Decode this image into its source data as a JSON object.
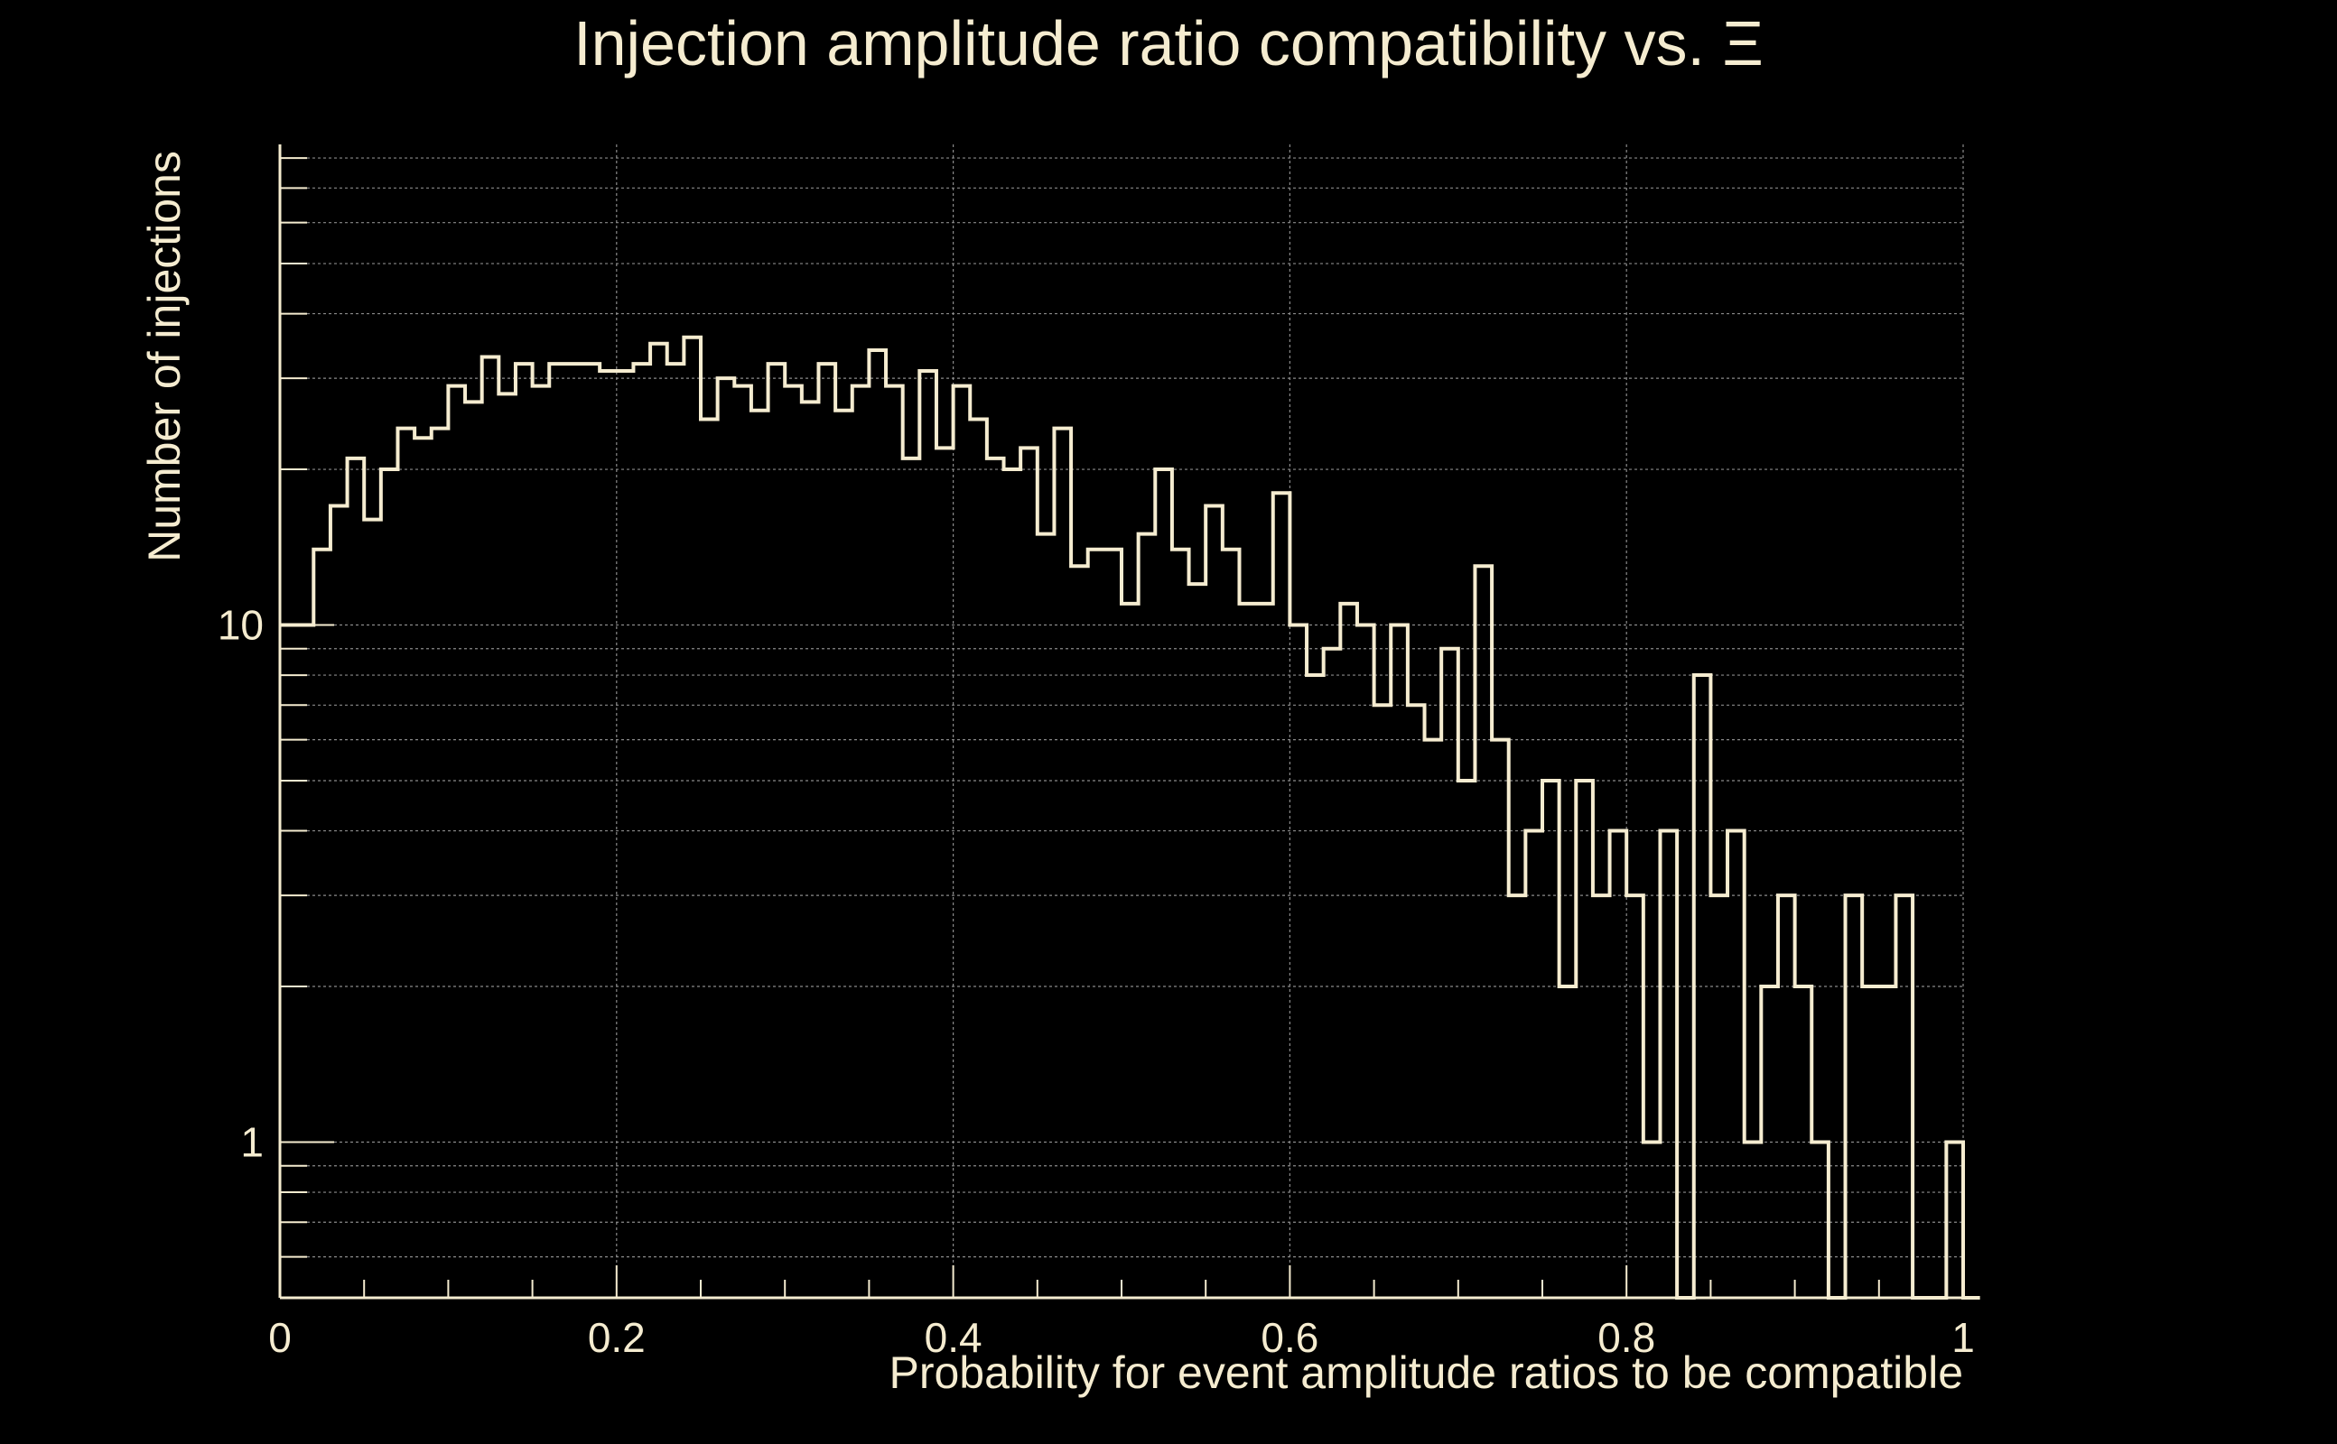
{
  "chart_data": {
    "type": "histogram",
    "title": "Injection amplitude ratio compatibility vs. Ξ",
    "xlabel": "Probability for event amplitude ratios to be compatible",
    "ylabel": "Number of injections",
    "x_scale": "linear",
    "y_scale": "log",
    "xlim": [
      0,
      1
    ],
    "ylim": [
      0.5,
      85
    ],
    "x_ticks": [
      0,
      0.2,
      0.4,
      0.6,
      0.8,
      1
    ],
    "x_tick_labels": [
      "0",
      "0.2",
      "0.4",
      "0.6",
      "0.8",
      "1"
    ],
    "y_ticks": [
      1,
      10
    ],
    "y_tick_labels": [
      "1",
      "10"
    ],
    "grid": true,
    "bin_edges_start": 0,
    "bin_width": 0.01,
    "counts": [
      10,
      10,
      14,
      17,
      21,
      16,
      20,
      24,
      23,
      24,
      29,
      27,
      33,
      28,
      32,
      29,
      32,
      32,
      32,
      31,
      31,
      32,
      35,
      32,
      36,
      25,
      30,
      29,
      26,
      32,
      29,
      27,
      32,
      26,
      29,
      34,
      29,
      21,
      31,
      22,
      29,
      25,
      21,
      20,
      22,
      15,
      24,
      13,
      14,
      14,
      11,
      15,
      20,
      14,
      12,
      17,
      14,
      11,
      11,
      18,
      10,
      8,
      9,
      11,
      10,
      7,
      10,
      7,
      6,
      9,
      5,
      13,
      6,
      3,
      4,
      5,
      2,
      5,
      3,
      4,
      3,
      1,
      4,
      0,
      8,
      3,
      4,
      1,
      2,
      3,
      2,
      1,
      0,
      3,
      2,
      2,
      3,
      0,
      0,
      1,
      0
    ],
    "colors": {
      "background": "#000000",
      "foreground": "#f5ecd0",
      "grid": "#8a8a8a"
    }
  }
}
